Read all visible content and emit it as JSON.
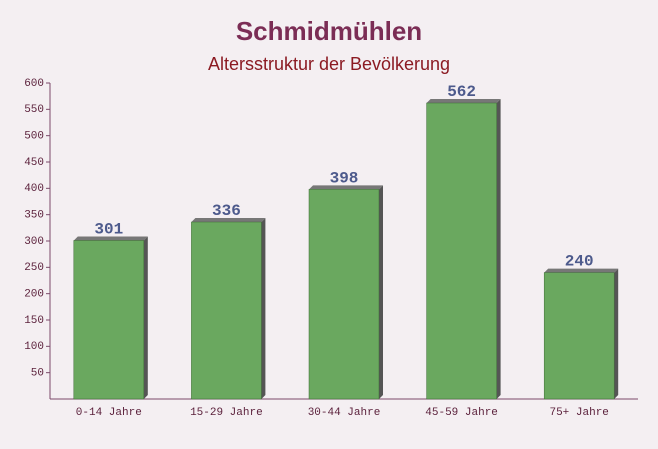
{
  "chart_data": {
    "type": "bar",
    "title": "Schmidmühlen",
    "subtitle": "Altersstruktur der Bevölkerung",
    "categories": [
      "0-14 Jahre",
      "15-29 Jahre",
      "30-44 Jahre",
      "45-59 Jahre",
      "75+ Jahre"
    ],
    "values": [
      301,
      336,
      398,
      562,
      240
    ],
    "color": "#6aa85f",
    "ylim": [
      0,
      600
    ],
    "yticks": [
      50,
      100,
      150,
      200,
      250,
      300,
      350,
      400,
      450,
      500,
      550,
      600
    ],
    "grid": false
  }
}
